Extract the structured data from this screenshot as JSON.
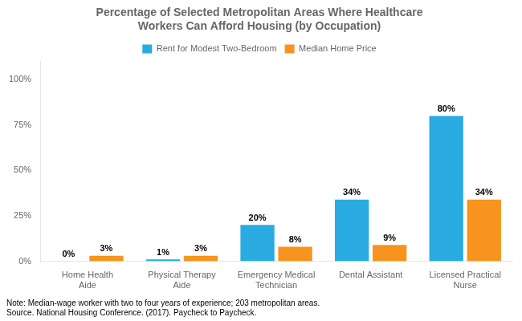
{
  "chart_data": {
    "type": "bar",
    "title": "Percentage of Selected Metropolitan Areas Where Healthcare\nWorkers Can Afford Housing (by Occupation)",
    "categories": [
      "Home Health\nAide",
      "Physical Therapy\nAide",
      "Emergency Medical\nTechnician",
      "Dental Assistant",
      "Licensed Practical\nNurse"
    ],
    "series": [
      {
        "name": "Rent for Modest Two-Bedroom",
        "color": "#29ABE2",
        "values": [
          0,
          1,
          20,
          34,
          80
        ],
        "value_labels": [
          "0%",
          "1%",
          "20%",
          "34%",
          "80%"
        ]
      },
      {
        "name": "Median Home Price",
        "color": "#F7941D",
        "values": [
          3,
          3,
          8,
          9,
          34
        ],
        "value_labels": [
          "3%",
          "3%",
          "8%",
          "9%",
          "34%"
        ]
      }
    ],
    "ylim": [
      0,
      110
    ],
    "yticks": [
      {
        "value": 0,
        "label": "0%"
      },
      {
        "value": 25,
        "label": "25%"
      },
      {
        "value": 50,
        "label": "50%"
      },
      {
        "value": 75,
        "label": "75%"
      },
      {
        "value": 100,
        "label": "100%"
      }
    ],
    "grid": false,
    "legend": "top",
    "data_labels": true,
    "annotations": [
      "Note: Median-wage worker with two to four years of experience; 203 metropolitan areas.\nSource. National Housing Conference. (2017). Paycheck to Paycheck."
    ]
  }
}
